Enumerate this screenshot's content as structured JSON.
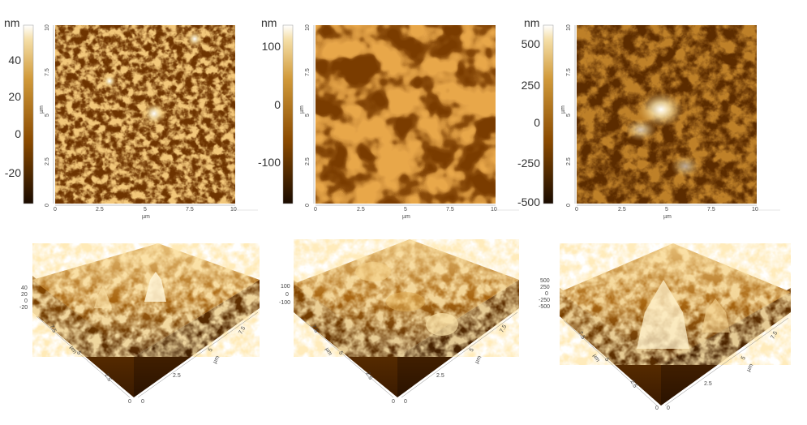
{
  "maps": [
    {
      "unit": "nm",
      "cbar_ticks": [
        "40",
        "20",
        "0",
        "-20"
      ],
      "x_ticks": [
        "0",
        "2.5",
        "5",
        "7.5",
        "10"
      ],
      "y_ticks": [
        "0",
        "2.5",
        "5",
        "7.5",
        "10"
      ],
      "axis_unit": "µm"
    },
    {
      "unit": "nm",
      "cbar_ticks": [
        "100",
        "0",
        "-100"
      ],
      "x_ticks": [
        "0",
        "2.5",
        "5",
        "7.5",
        "10"
      ],
      "y_ticks": [
        "0",
        "2.5",
        "5",
        "7.5",
        "10"
      ],
      "axis_unit": "µm"
    },
    {
      "unit": "nm",
      "cbar_ticks": [
        "500",
        "250",
        "0",
        "-250",
        "-500"
      ],
      "x_ticks": [
        "0",
        "2.5",
        "5",
        "7.5",
        "10"
      ],
      "y_ticks": [
        "0",
        "2.5",
        "5",
        "7.5",
        "10"
      ],
      "axis_unit": "µm"
    }
  ],
  "surfaces": [
    {
      "z_ticks": [
        "40",
        "20",
        "0",
        "-20"
      ],
      "left_ticks": [
        "7.5",
        "5",
        "2.5",
        "0"
      ],
      "right_ticks": [
        "0",
        "2.5",
        "5",
        "7.5"
      ],
      "unit": "µm"
    },
    {
      "z_ticks": [
        "100",
        "0",
        "-100"
      ],
      "left_ticks": [
        "7.5",
        "5",
        "2.5",
        "0"
      ],
      "right_ticks": [
        "0",
        "2.5",
        "5",
        "7.5"
      ],
      "unit": "µm"
    },
    {
      "z_ticks": [
        "500",
        "250",
        "0",
        "-250",
        "-500"
      ],
      "left_ticks": [
        "7.5",
        "5",
        "2.5",
        "0"
      ],
      "right_ticks": [
        "0",
        "2.5",
        "5",
        "7.5"
      ],
      "unit": "µm"
    }
  ],
  "colors": {
    "dark": "#2a1400",
    "mid": "#9a5a00",
    "light": "#e8b860",
    "bright": "#fff8e0"
  }
}
